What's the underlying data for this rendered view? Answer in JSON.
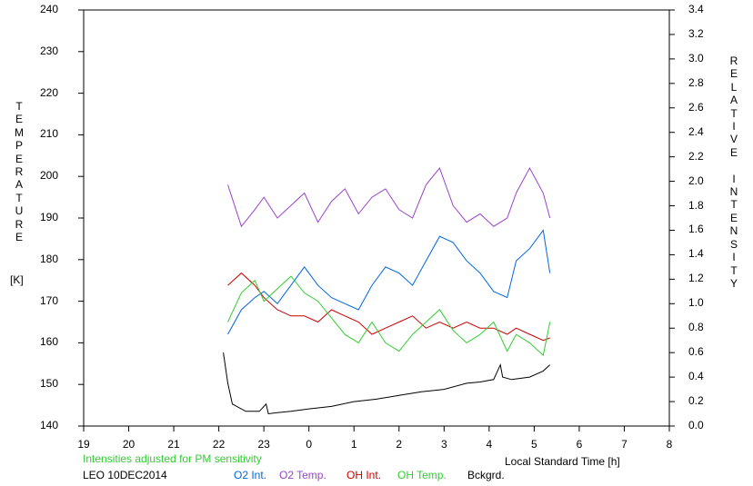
{
  "chart_data": {
    "type": "line",
    "xlabel": "Local Standard Time [h]",
    "x_ticks": [
      19,
      20,
      21,
      22,
      23,
      0,
      1,
      2,
      3,
      4,
      5,
      6,
      7,
      8
    ],
    "y_left": {
      "label": "TEMPERATURE",
      "unit": "[K]",
      "range": [
        140,
        240
      ],
      "ticks": [
        140,
        150,
        160,
        170,
        180,
        190,
        200,
        210,
        220,
        230,
        240
      ]
    },
    "y_right": {
      "label": "RELATIVE INTENSITY",
      "range": [
        0.0,
        3.4
      ],
      "ticks": [
        "0.0",
        "0.2",
        "0.4",
        "0.6",
        "0.8",
        "1.0",
        "1.2",
        "1.4",
        "1.6",
        "1.8",
        "2.0",
        "2.2",
        "2.4",
        "2.6",
        "2.8",
        "3.0",
        "3.2",
        "3.4"
      ]
    },
    "note": "Intensities adjusted for PM sensitivity",
    "station": "LEO 10DEC2014",
    "series": [
      {
        "name": "O2 Int.",
        "color": "#0066dd",
        "axis": "right",
        "x": [
          22.2,
          22.5,
          22.8,
          23.0,
          23.3,
          23.6,
          23.9,
          24.2,
          24.5,
          24.8,
          25.1,
          25.4,
          25.7,
          26.0,
          26.3,
          26.6,
          26.9,
          27.2,
          27.5,
          27.8,
          28.1,
          28.4,
          28.6,
          28.9,
          29.2,
          29.35
        ],
        "y": [
          0.75,
          0.95,
          1.05,
          1.1,
          1.0,
          1.15,
          1.3,
          1.15,
          1.05,
          1.0,
          0.95,
          1.15,
          1.3,
          1.25,
          1.15,
          1.35,
          1.55,
          1.5,
          1.35,
          1.25,
          1.1,
          1.05,
          1.35,
          1.45,
          1.6,
          1.25
        ]
      },
      {
        "name": "O2 Temp.",
        "color": "#9944cc",
        "axis": "left",
        "x": [
          22.2,
          22.5,
          22.8,
          23.0,
          23.3,
          23.6,
          23.9,
          24.2,
          24.5,
          24.8,
          25.1,
          25.4,
          25.7,
          26.0,
          26.3,
          26.6,
          26.9,
          27.2,
          27.5,
          27.8,
          28.1,
          28.4,
          28.6,
          28.9,
          29.2,
          29.35
        ],
        "y": [
          198,
          188,
          192,
          195,
          190,
          193,
          196,
          189,
          194,
          197,
          191,
          195,
          197,
          192,
          190,
          198,
          202,
          193,
          189,
          191,
          188,
          190,
          196,
          202,
          196,
          190
        ]
      },
      {
        "name": "OH Int.",
        "color": "#cc0000",
        "axis": "right",
        "x": [
          22.2,
          22.5,
          22.8,
          23.0,
          23.3,
          23.6,
          23.9,
          24.2,
          24.5,
          24.8,
          25.1,
          25.4,
          25.7,
          26.0,
          26.3,
          26.6,
          26.9,
          27.2,
          27.5,
          27.8,
          28.1,
          28.4,
          28.6,
          28.9,
          29.2,
          29.35
        ],
        "y": [
          1.15,
          1.25,
          1.15,
          1.05,
          0.95,
          0.9,
          0.9,
          0.85,
          0.95,
          0.9,
          0.85,
          0.75,
          0.8,
          0.85,
          0.9,
          0.8,
          0.85,
          0.8,
          0.85,
          0.8,
          0.8,
          0.75,
          0.8,
          0.75,
          0.7,
          0.72
        ]
      },
      {
        "name": "OH Temp.",
        "color": "#33cc33",
        "axis": "left",
        "x": [
          22.2,
          22.5,
          22.8,
          23.0,
          23.3,
          23.6,
          23.9,
          24.2,
          24.5,
          24.8,
          25.1,
          25.4,
          25.7,
          26.0,
          26.3,
          26.6,
          26.9,
          27.2,
          27.5,
          27.8,
          28.1,
          28.4,
          28.6,
          28.9,
          29.2,
          29.35
        ],
        "y": [
          165,
          172,
          175,
          170,
          173,
          176,
          172,
          170,
          166,
          162,
          160,
          165,
          160,
          158,
          162,
          165,
          168,
          163,
          160,
          162,
          165,
          158,
          162,
          160,
          157,
          165
        ]
      },
      {
        "name": "Bckgrd.",
        "color": "#000000",
        "axis": "right",
        "x": [
          22.1,
          22.2,
          22.3,
          22.6,
          22.9,
          23.05,
          23.1,
          23.3,
          23.6,
          24.0,
          24.5,
          25.0,
          25.5,
          26.0,
          26.5,
          27.0,
          27.5,
          27.8,
          28.1,
          28.25,
          28.3,
          28.5,
          28.9,
          29.2,
          29.35
        ],
        "y": [
          0.6,
          0.35,
          0.18,
          0.12,
          0.12,
          0.18,
          0.1,
          0.11,
          0.12,
          0.14,
          0.16,
          0.2,
          0.22,
          0.25,
          0.28,
          0.3,
          0.35,
          0.36,
          0.38,
          0.5,
          0.4,
          0.38,
          0.4,
          0.45,
          0.5
        ]
      }
    ]
  }
}
